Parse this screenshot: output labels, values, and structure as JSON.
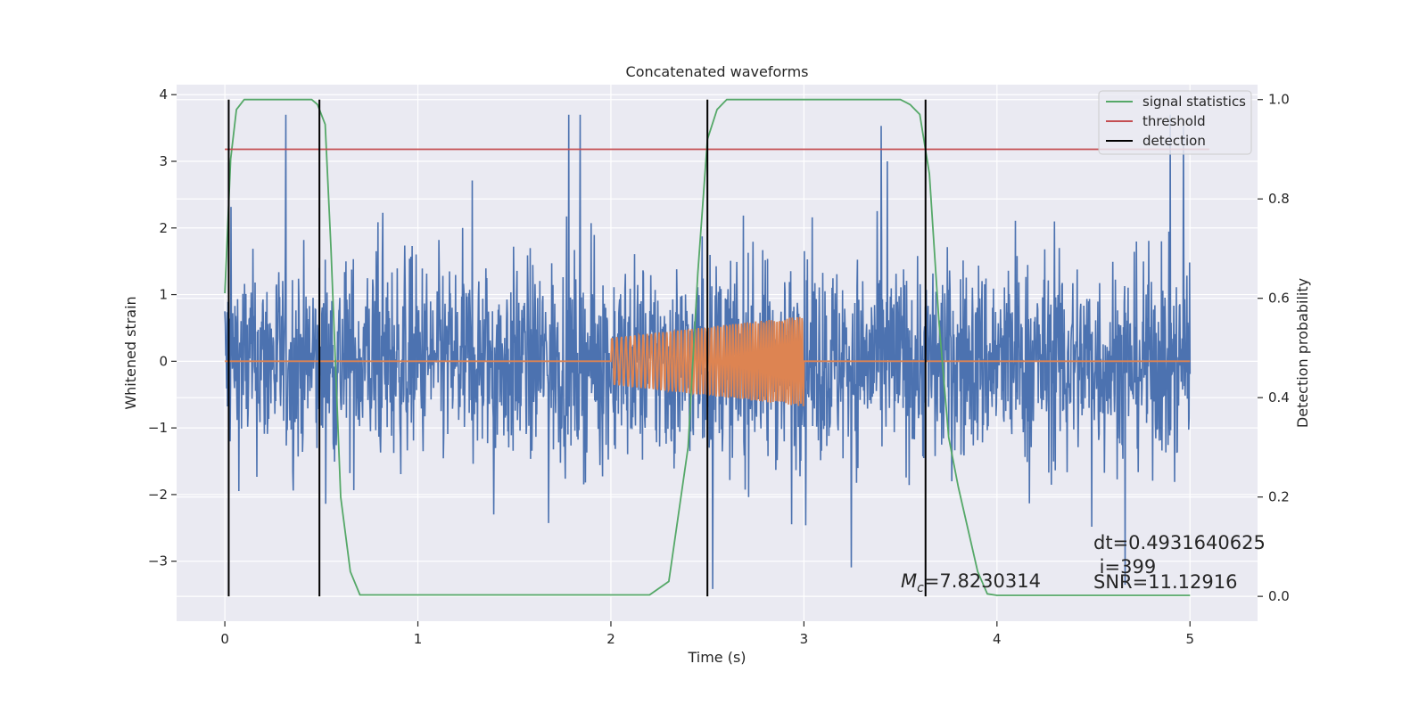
{
  "chart_data": {
    "type": "line",
    "title": "Concatenated waveforms",
    "xlabel": "Time (s)",
    "ylabel": "Whitened strain",
    "ylabel_right": "Detection probability",
    "xlim": [
      -0.25,
      5.35
    ],
    "ylim": [
      -3.9,
      4.15
    ],
    "ylim_right": [
      -0.05,
      1.03
    ],
    "x_ticks": [
      "0",
      "1",
      "2",
      "3",
      "4",
      "5"
    ],
    "x_tick_values": [
      0,
      1,
      2,
      3,
      4,
      5
    ],
    "y_ticks": [
      "4",
      "3",
      "2",
      "1",
      "0",
      "−1",
      "−2",
      "−3"
    ],
    "y_tick_values": [
      4,
      3,
      2,
      1,
      0,
      -1,
      -2,
      -3
    ],
    "y_ticks_right": [
      "1.0",
      "0.8",
      "0.6",
      "0.4",
      "0.2",
      "0.0"
    ],
    "y_tick_values_right": [
      1.0,
      0.8,
      0.6,
      0.4,
      0.2,
      0.0
    ],
    "grid": true,
    "legend_position": "top-right",
    "colors": {
      "background": "#eaeaf2",
      "grid": "#ffffff",
      "strain": "#4c72b0",
      "waveform": "#dd8452",
      "signal_statistics": "#55a868",
      "threshold": "#c44e52",
      "detection": "#000000"
    },
    "series": [
      {
        "name": "",
        "kind": "noise",
        "axis": "left",
        "x_range": [
          0,
          5
        ],
        "envelope_approx": [
          -3.6,
          3.7
        ]
      },
      {
        "name": "",
        "kind": "chirp",
        "axis": "left",
        "x_start": 0,
        "x_end": 5,
        "chirp_range": [
          2.0,
          3.0
        ],
        "amplitude_range": [
          0.35,
          0.68
        ]
      },
      {
        "name": "signal statistics",
        "axis": "right",
        "x": [
          0.0,
          0.03,
          0.06,
          0.1,
          0.2,
          0.45,
          0.48,
          0.52,
          0.55,
          0.6,
          0.65,
          0.7,
          1.0,
          1.5,
          2.0,
          2.2,
          2.3,
          2.4,
          2.45,
          2.5,
          2.55,
          2.6,
          2.7,
          2.8,
          3.5,
          3.55,
          3.6,
          3.65,
          3.7,
          3.75,
          3.8,
          3.9,
          3.95,
          4.0,
          5.0
        ],
        "y": [
          0.61,
          0.88,
          0.98,
          1.0,
          1.0,
          1.0,
          0.99,
          0.95,
          0.7,
          0.2,
          0.05,
          0.003,
          0.003,
          0.003,
          0.003,
          0.003,
          0.03,
          0.3,
          0.65,
          0.92,
          0.98,
          1.0,
          1.0,
          1.0,
          1.0,
          0.99,
          0.97,
          0.85,
          0.55,
          0.32,
          0.22,
          0.05,
          0.005,
          0.002,
          0.002
        ]
      },
      {
        "name": "threshold",
        "axis": "right",
        "x": [
          0,
          5.1
        ],
        "y": [
          0.9,
          0.9
        ]
      },
      {
        "name": "detection",
        "axis": "right",
        "x_positions": [
          0.02,
          0.49,
          2.5,
          3.63
        ],
        "y_range": [
          0.0,
          1.0
        ]
      }
    ],
    "annotations": {
      "mc_prefix": "M",
      "mc_sub": "c",
      "mc_value": "=7.8230314",
      "dt": "dt=0.4931640625",
      "i": " i=399",
      "snr": "SNR=11.12916"
    }
  }
}
